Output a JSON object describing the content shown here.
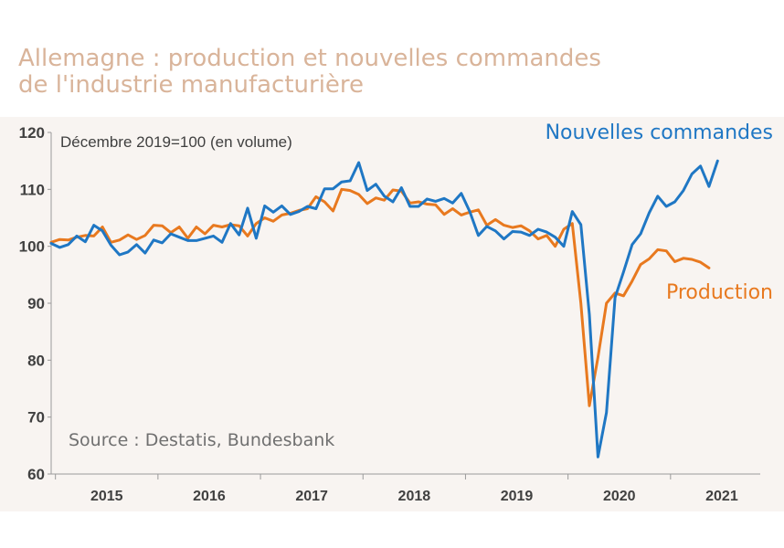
{
  "chart_data": {
    "type": "line",
    "title_lines": [
      "Allemagne : production et nouvelles commandes",
      "de l'industrie manufacturière"
    ],
    "note": "Décembre 2019=100 (en volume)",
    "source": "Source : Destatis, Bundesbank",
    "ylim": [
      60,
      120
    ],
    "yticks": [
      60,
      70,
      80,
      90,
      100,
      110,
      120
    ],
    "xlim": [
      "2014-12",
      "2021-11"
    ],
    "year_labels": [
      "2015",
      "2016",
      "2017",
      "2018",
      "2019",
      "2020",
      "2021"
    ],
    "grid": false,
    "series": [
      {
        "name": "Nouvelles commandes",
        "color": "#1f77c4",
        "start": "2014-12",
        "values": [
          100.5,
          99.8,
          100.3,
          101.8,
          100.8,
          103.7,
          102.7,
          100.2,
          98.5,
          99.0,
          100.3,
          98.8,
          101.1,
          100.6,
          102.2,
          101.6,
          101.0,
          101.0,
          101.4,
          101.8,
          100.7,
          104.0,
          102.0,
          106.7,
          101.4,
          107.1,
          106.0,
          107.1,
          105.6,
          106.1,
          107.0,
          106.6,
          110.1,
          110.1,
          111.3,
          111.5,
          114.7,
          109.8,
          110.9,
          108.8,
          107.8,
          110.3,
          107.0,
          107.0,
          108.3,
          107.9,
          108.4,
          107.6,
          109.3,
          106.1,
          101.9,
          103.5,
          102.7,
          101.3,
          102.6,
          102.5,
          101.9,
          103.0,
          102.5,
          101.6,
          100.0,
          106.1,
          103.8,
          88.0,
          63.0,
          70.8,
          91.0,
          95.5,
          100.3,
          102.2,
          105.9,
          108.8,
          107.0,
          107.8,
          109.8,
          112.7,
          114.1,
          110.5,
          115.0
        ]
      },
      {
        "name": "Production",
        "color": "#e8791f",
        "start": "2014-12",
        "values": [
          100.7,
          101.2,
          101.1,
          101.6,
          101.9,
          101.8,
          103.4,
          100.7,
          101.1,
          102.0,
          101.2,
          101.9,
          103.7,
          103.6,
          102.4,
          103.4,
          101.4,
          103.4,
          102.2,
          103.7,
          103.4,
          103.8,
          103.6,
          101.8,
          104.0,
          105.0,
          104.4,
          105.5,
          105.8,
          106.3,
          106.6,
          108.7,
          107.8,
          106.2,
          110.0,
          109.8,
          109.1,
          107.5,
          108.5,
          108.1,
          109.9,
          109.7,
          107.6,
          107.8,
          107.4,
          107.3,
          105.6,
          106.6,
          105.5,
          106.0,
          106.4,
          103.7,
          104.7,
          103.7,
          103.3,
          103.6,
          102.7,
          101.3,
          101.9,
          100.0,
          103.0,
          104.0,
          90.0,
          72.0,
          80.5,
          90.0,
          91.8,
          91.3,
          93.9,
          96.8,
          97.8,
          99.4,
          99.2,
          97.3,
          97.9,
          97.7,
          97.2,
          96.2
        ]
      }
    ],
    "series_labels": {
      "orders": "Nouvelles commandes",
      "production": "Production"
    }
  }
}
